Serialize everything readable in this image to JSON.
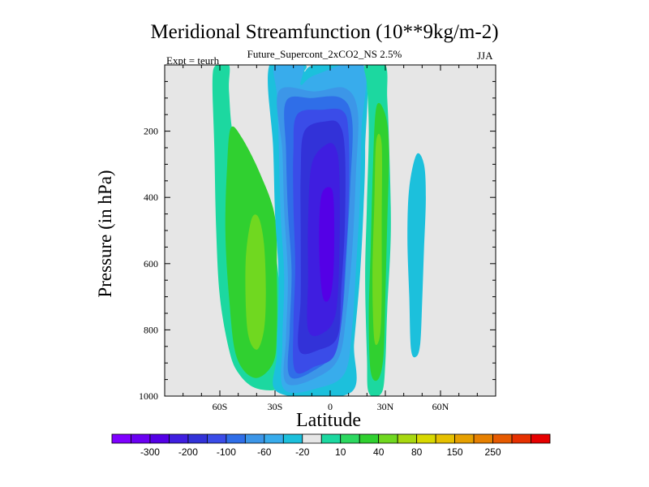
{
  "chart_data": {
    "type": "heatmap",
    "title": "Meridional Streamfunction (10**9kg/m-2)",
    "subtitle": "Future_Supercont_2xCO2_NS 2.5%",
    "left_label": "Expt = teurh",
    "right_label": "JJA",
    "xlabel": "Latitude",
    "ylabel": "Pressure (in hPa)",
    "x_range": [
      -90,
      90
    ],
    "y_range": [
      0,
      1000
    ],
    "y_reversed": true,
    "x_ticks": [
      {
        "value": -60,
        "label": "60S"
      },
      {
        "value": -30,
        "label": "30S"
      },
      {
        "value": 0,
        "label": "0"
      },
      {
        "value": 30,
        "label": "30N"
      },
      {
        "value": 60,
        "label": "60N"
      }
    ],
    "y_ticks": [
      {
        "value": 200,
        "label": "200"
      },
      {
        "value": 400,
        "label": "400"
      },
      {
        "value": 600,
        "label": "600"
      },
      {
        "value": 800,
        "label": "800"
      },
      {
        "value": 1000,
        "label": "1000"
      }
    ],
    "background_color": "#e6e6e6",
    "colorbar": {
      "colors": [
        "#7f00ff",
        "#6a00f2",
        "#5400e6",
        "#3f1ee0",
        "#3232d8",
        "#3a4ce8",
        "#2f6ee8",
        "#3c96e8",
        "#38acec",
        "#1cc0dc",
        "#e6e6e6",
        "#1cd8a0",
        "#2cd860",
        "#30d030",
        "#70d820",
        "#a8d810",
        "#d8d800",
        "#e6c000",
        "#e6a000",
        "#e68000",
        "#e65a00",
        "#e63000",
        "#e60000"
      ],
      "labels": [
        {
          "after_index": 1,
          "text": "-300"
        },
        {
          "after_index": 3,
          "text": "-200"
        },
        {
          "after_index": 5,
          "text": "-100"
        },
        {
          "after_index": 7,
          "text": "-60"
        },
        {
          "after_index": 9,
          "text": "-20"
        },
        {
          "after_index": 11,
          "text": "10"
        },
        {
          "after_index": 13,
          "text": "40"
        },
        {
          "after_index": 15,
          "text": "80"
        },
        {
          "after_index": 17,
          "text": "150"
        },
        {
          "after_index": 19,
          "text": "250"
        }
      ]
    },
    "contour_cells": [
      {
        "name": "sh-outer-cell-green",
        "fill": "#1cd8a0",
        "outline": [
          [
            -62,
            0
          ],
          [
            -55,
            0
          ],
          [
            -55,
            80
          ],
          [
            -52,
            230
          ],
          [
            -40,
            380
          ],
          [
            -30,
            560
          ],
          [
            -26,
            780
          ],
          [
            -24,
            880
          ],
          [
            -23,
            945
          ],
          [
            -28,
            980
          ],
          [
            -41,
            975
          ],
          [
            -50,
            930
          ],
          [
            -55,
            860
          ],
          [
            -60,
            700
          ],
          [
            -62,
            500
          ],
          [
            -63,
            250
          ],
          [
            -64,
            50
          ]
        ]
      },
      {
        "name": "sh-outer-cell-lightgreen",
        "fill": "#30d030",
        "outline": [
          [
            -54,
            190
          ],
          [
            -48,
            220
          ],
          [
            -38,
            330
          ],
          [
            -30,
            460
          ],
          [
            -29,
            640
          ],
          [
            -29,
            800
          ],
          [
            -31,
            900
          ],
          [
            -41,
            945
          ],
          [
            -51,
            880
          ],
          [
            -55,
            700
          ],
          [
            -57,
            500
          ],
          [
            -56,
            300
          ]
        ]
      },
      {
        "name": "sh-outer-cell-yellowgreen",
        "fill": "#70d820",
        "outline": [
          [
            -43,
            470
          ],
          [
            -39,
            460
          ],
          [
            -36,
            540
          ],
          [
            -35,
            680
          ],
          [
            -36,
            800
          ],
          [
            -40,
            860
          ],
          [
            -45,
            800
          ],
          [
            -46,
            600
          ]
        ]
      },
      {
        "name": "main-cell-cyan",
        "fill": "#1cc0dc",
        "outline": [
          [
            -33,
            0
          ],
          [
            -14,
            0
          ],
          [
            -14,
            20
          ],
          [
            -8,
            0
          ],
          [
            18,
            0
          ],
          [
            19,
            260
          ],
          [
            18,
            450
          ],
          [
            16,
            650
          ],
          [
            13,
            840
          ],
          [
            11,
            990
          ],
          [
            -28,
            990
          ],
          [
            -29,
            870
          ],
          [
            -28,
            650
          ],
          [
            -30,
            450
          ],
          [
            -31,
            250
          ]
        ]
      },
      {
        "name": "main-cell-lightblue",
        "fill": "#38acec",
        "outline": [
          [
            -30,
            0
          ],
          [
            -15,
            0
          ],
          [
            -16,
            60
          ],
          [
            -8,
            30
          ],
          [
            18,
            0
          ],
          [
            17,
            200
          ],
          [
            16,
            420
          ],
          [
            14,
            620
          ],
          [
            12,
            790
          ],
          [
            8,
            930
          ],
          [
            -6,
            975
          ],
          [
            -25,
            980
          ],
          [
            -26,
            840
          ],
          [
            -25,
            640
          ],
          [
            -27,
            450
          ],
          [
            -28,
            230
          ],
          [
            -29,
            90
          ]
        ]
      },
      {
        "name": "main-cell-blue",
        "fill": "#3c96e8",
        "outline": [
          [
            -28,
            80
          ],
          [
            -8,
            80
          ],
          [
            8,
            70
          ],
          [
            15,
            140
          ],
          [
            14,
            330
          ],
          [
            12,
            560
          ],
          [
            9,
            740
          ],
          [
            5,
            880
          ],
          [
            -6,
            940
          ],
          [
            -24,
            960
          ],
          [
            -24,
            820
          ],
          [
            -23,
            640
          ],
          [
            -25,
            440
          ],
          [
            -26,
            260
          ]
        ]
      },
      {
        "name": "main-cell-mediumblue",
        "fill": "#2f6ee8",
        "outline": [
          [
            -24,
            110
          ],
          [
            -10,
            100
          ],
          [
            6,
            100
          ],
          [
            12,
            170
          ],
          [
            11,
            360
          ],
          [
            9,
            560
          ],
          [
            7,
            730
          ],
          [
            3,
            860
          ],
          [
            -8,
            920
          ],
          [
            -22,
            940
          ],
          [
            -22,
            800
          ],
          [
            -21,
            620
          ],
          [
            -23,
            440
          ],
          [
            -24,
            260
          ]
        ]
      },
      {
        "name": "main-cell-royalblue",
        "fill": "#3a4ce8",
        "outline": [
          [
            -18,
            150
          ],
          [
            -4,
            135
          ],
          [
            7,
            140
          ],
          [
            10,
            210
          ],
          [
            10,
            420
          ],
          [
            8,
            620
          ],
          [
            6,
            780
          ],
          [
            2,
            880
          ],
          [
            -8,
            910
          ],
          [
            -19,
            925
          ],
          [
            -20,
            790
          ],
          [
            -19,
            610
          ],
          [
            -20,
            420
          ],
          [
            -20,
            260
          ]
        ]
      },
      {
        "name": "main-cell-indigo",
        "fill": "#3232d8",
        "outline": [
          [
            -14,
            200
          ],
          [
            -2,
            170
          ],
          [
            5,
            180
          ],
          [
            8,
            260
          ],
          [
            8,
            480
          ],
          [
            6,
            680
          ],
          [
            4,
            820
          ],
          [
            -6,
            860
          ],
          [
            -17,
            860
          ],
          [
            -16,
            700
          ],
          [
            -16,
            500
          ],
          [
            -16,
            330
          ]
        ]
      },
      {
        "name": "main-cell-violet",
        "fill": "#3f1ee0",
        "outline": [
          [
            -10,
            300
          ],
          [
            -2,
            240
          ],
          [
            3,
            250
          ],
          [
            5,
            330
          ],
          [
            5,
            560
          ],
          [
            3,
            750
          ],
          [
            -4,
            810
          ],
          [
            -12,
            800
          ],
          [
            -12,
            640
          ],
          [
            -12,
            470
          ]
        ]
      },
      {
        "name": "main-cell-purple",
        "fill": "#5400e6",
        "outline": [
          [
            -5,
            400
          ],
          [
            0,
            370
          ],
          [
            2,
            420
          ],
          [
            2,
            600
          ],
          [
            0,
            700
          ],
          [
            -4,
            700
          ],
          [
            -6,
            560
          ]
        ]
      },
      {
        "name": "nh-cell-green",
        "fill": "#1cd8a0",
        "outline": [
          [
            19,
            0
          ],
          [
            30,
            0
          ],
          [
            31,
            100
          ],
          [
            32,
            230
          ],
          [
            33,
            500
          ],
          [
            31,
            740
          ],
          [
            30,
            900
          ],
          [
            28,
            990
          ],
          [
            21,
            990
          ],
          [
            20,
            880
          ],
          [
            19,
            640
          ],
          [
            20,
            420
          ],
          [
            21,
            200
          ],
          [
            20,
            60
          ]
        ]
      },
      {
        "name": "nh-cell-lightgreen",
        "fill": "#30d030",
        "outline": [
          [
            25,
            130
          ],
          [
            30,
            150
          ],
          [
            32,
            260
          ],
          [
            31,
            480
          ],
          [
            30,
            700
          ],
          [
            29,
            880
          ],
          [
            26,
            950
          ],
          [
            22,
            925
          ],
          [
            21,
            760
          ],
          [
            22,
            560
          ],
          [
            23,
            360
          ]
        ]
      },
      {
        "name": "nh-cell-yellowgreen",
        "fill": "#70d820",
        "outline": [
          [
            25,
            230
          ],
          [
            28,
            240
          ],
          [
            28,
            480
          ],
          [
            28,
            700
          ],
          [
            27,
            820
          ],
          [
            24,
            830
          ],
          [
            23,
            640
          ],
          [
            24,
            420
          ]
        ]
      },
      {
        "name": "nh-outer-cell-cyan",
        "fill": "#1cc0dc",
        "outline": [
          [
            47,
            270
          ],
          [
            51,
            300
          ],
          [
            52,
            400
          ],
          [
            51,
            560
          ],
          [
            50,
            720
          ],
          [
            49,
            840
          ],
          [
            47,
            880
          ],
          [
            44,
            860
          ],
          [
            43,
            700
          ],
          [
            42,
            520
          ],
          [
            43,
            370
          ]
        ]
      }
    ]
  }
}
